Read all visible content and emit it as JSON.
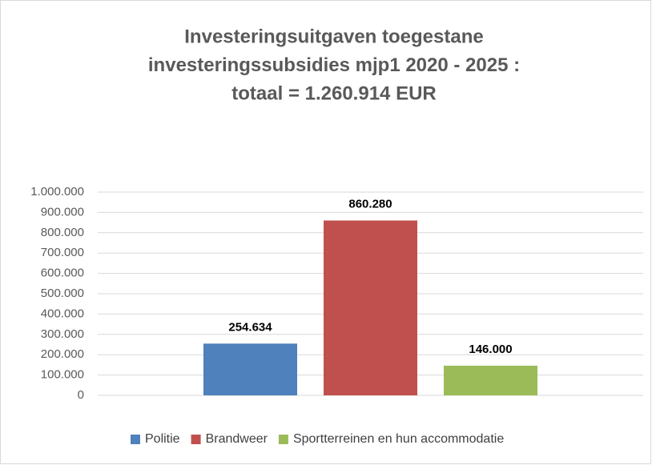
{
  "chart_data": {
    "type": "bar",
    "title": [
      "Investeringsuitgaven toegestane",
      "investeringssubsidies mjp1 2020 - 2025 :",
      "totaal = 1.260.914 EUR"
    ],
    "categories": [
      null
    ],
    "series": [
      {
        "name": "Politie",
        "color": "#4f81bd",
        "values": [
          254634
        ],
        "value_labels": [
          "254.634"
        ]
      },
      {
        "name": "Brandweer",
        "color": "#c0504d",
        "values": [
          860280
        ],
        "value_labels": [
          "860.280"
        ]
      },
      {
        "name": "Sportterreinen en hun accommodatie",
        "color": "#9bbb59",
        "values": [
          146000
        ],
        "value_labels": [
          "146.000"
        ]
      }
    ],
    "ylim": [
      0,
      1000000
    ],
    "yticks": [
      0,
      {
        "value": 100000,
        "label": "100.000"
      },
      {
        "value": 200000,
        "label": "200.000"
      },
      {
        "value": 300000,
        "label": "300.000"
      },
      {
        "value": 400000,
        "label": "400.000"
      },
      {
        "value": 500000,
        "label": "500.000"
      },
      {
        "value": 600000,
        "label": "600.000"
      },
      {
        "value": 700000,
        "label": "700.000"
      },
      {
        "value": 800000,
        "label": "800.000"
      },
      {
        "value": 900000,
        "label": "900.000"
      },
      {
        "value": 1000000,
        "label": "1.000.000"
      }
    ],
    "grid": true,
    "legend": "bottom"
  }
}
